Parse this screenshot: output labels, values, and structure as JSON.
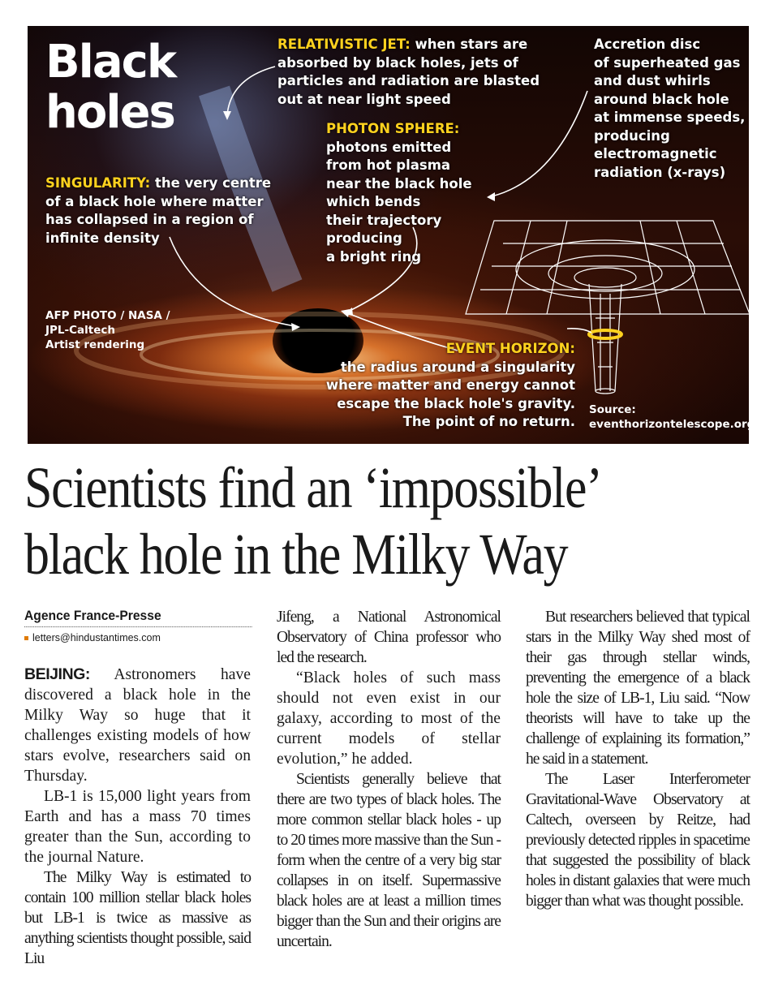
{
  "graphic": {
    "title_line1": "Black",
    "title_line2": "holes",
    "jet_label": "RELATIVISTIC JET:",
    "jet_lines": [
      "when stars are",
      "absorbed by black holes, jets of",
      "particles and radiation are blasted",
      "out at near light speed"
    ],
    "accretion_lines": [
      "Accretion disc",
      "of superheated gas",
      "and dust whirls",
      "around black hole",
      "at immense speeds,",
      "producing",
      "electromagnetic",
      "radiation (x-rays)"
    ],
    "photon_label": "PHOTON SPHERE:",
    "photon_lines": [
      "photons emitted",
      "from hot plasma",
      "near the black hole",
      "which bends",
      "their trajectory",
      "producing",
      "a bright ring"
    ],
    "singularity_label": "SINGULARITY:",
    "singularity_lines": [
      "the very centre",
      "of a black hole where matter",
      "has collapsed in a region of",
      "infinite density"
    ],
    "credit_lines": [
      "AFP PHOTO / NASA /",
      "JPL-Caltech",
      "Artist rendering"
    ],
    "event_label": "EVENT HORIZON:",
    "event_lines": [
      "the radius around a singularity",
      "where matter and energy cannot",
      "escape the black hole's gravity.",
      "The point of no return."
    ],
    "source_lines": [
      "Source:",
      "eventhorizontelescope.org"
    ],
    "colors": {
      "label": "#ffd21e",
      "text": "#ffffff",
      "grid": "#ffffff",
      "ring": "#ffd21e"
    }
  },
  "headline": {
    "line1": "Scientists find an ‘impossible’",
    "line2": "black hole in the Milky Way"
  },
  "byline": "Agence France-Presse",
  "email": "letters@hindustantimes.com",
  "article": {
    "dateline": "BEIJING:",
    "col1": [
      "Astronomers have discovered a black hole in the Milky Way so huge that it challenges existing models of how stars evolve, researchers said on Thursday.",
      "LB-1 is 15,000 light years from Earth and has a mass 70 times greater than the Sun, according to the journal Nature.",
      "The Milky Way is estimated to contain 100 million stellar black holes but LB-1 is twice as massive as anything scientists thought possible, said Liu"
    ],
    "col2": [
      "Jifeng, a National Astronomical Observatory of China professor who led the research.",
      "“Black holes of such mass should not even exist in our galaxy, according to most of the current models of stellar evolution,” he added.",
      "Scientists generally believe that there are two types of black holes. The more common stellar black holes - up to 20 times more massive than the Sun - form when the centre of a very big star collapses in on itself. Supermassive black holes are at least a million times bigger than the Sun and their origins are uncertain."
    ],
    "col3": [
      "But researchers believed that typical stars in the Milky Way shed most of their gas through stellar winds, preventing the emergence of a black hole the size of LB-1, Liu said. “Now theorists will have to take up the challenge of explaining its formation,” he said in a statement.",
      "The Laser Interferometer Gravitational-Wave Observatory at Caltech, overseen by Reitze, had previously detected ripples in spacetime that suggested the possibility of black holes in distant galaxies that were much bigger than what was thought possible."
    ]
  }
}
